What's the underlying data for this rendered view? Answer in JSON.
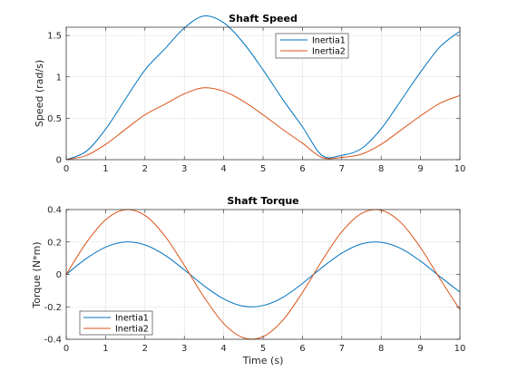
{
  "chart_data": [
    {
      "type": "line",
      "title": "Shaft Speed",
      "xlabel": "",
      "ylabel": "Speed (rad/s)",
      "xlim": [
        0,
        10
      ],
      "ylim": [
        0,
        1.6
      ],
      "xticks": [
        "0",
        "1",
        "2",
        "3",
        "4",
        "5",
        "6",
        "7",
        "8",
        "9",
        "10"
      ],
      "yticks": [
        "0",
        "0.5",
        "1",
        "1.5"
      ],
      "ytick_values": [
        0,
        0.5,
        1,
        1.5
      ],
      "grid": true,
      "legend": "top-right",
      "x": [
        0,
        0.5,
        1,
        1.5,
        2,
        2.5,
        3,
        3.5,
        4,
        4.5,
        5,
        5.5,
        6,
        6.5,
        7,
        7.5,
        8,
        8.5,
        9,
        9.5,
        10
      ],
      "series": [
        {
          "name": "Inertia1",
          "color": "#0072bd",
          "values": [
            0,
            0.098,
            0.368,
            0.729,
            1.083,
            1.336,
            1.59,
            1.736,
            1.654,
            1.411,
            1.084,
            0.728,
            0.397,
            0.05,
            0.053,
            0.134,
            0.373,
            0.714,
            1.058,
            1.365,
            1.551
          ]
        },
        {
          "name": "Inertia2",
          "color": "#d95319",
          "values": [
            0,
            0.049,
            0.184,
            0.365,
            0.542,
            0.668,
            0.795,
            0.868,
            0.827,
            0.705,
            0.542,
            0.364,
            0.199,
            0.025,
            0.027,
            0.067,
            0.186,
            0.357,
            0.529,
            0.683,
            0.775
          ]
        }
      ]
    },
    {
      "type": "line",
      "title": "Shaft Torque",
      "xlabel": "Time (s)",
      "ylabel": "Torque (N*m)",
      "xlim": [
        0,
        10
      ],
      "ylim": [
        -0.4,
        0.4
      ],
      "xticks": [
        "0",
        "1",
        "2",
        "3",
        "4",
        "5",
        "6",
        "7",
        "8",
        "9",
        "10"
      ],
      "yticks": [
        "-0.4",
        "-0.2",
        "0",
        "0.2",
        "0.4"
      ],
      "ytick_values": [
        -0.4,
        -0.2,
        0,
        0.2,
        0.4
      ],
      "grid": true,
      "legend": "bottom-left",
      "x": [
        0,
        0.5,
        1,
        1.5,
        2,
        2.5,
        3,
        3.5,
        4,
        4.5,
        5,
        5.5,
        6,
        6.5,
        7,
        7.5,
        8,
        8.5,
        9,
        9.5,
        10
      ],
      "series": [
        {
          "name": "Inertia1",
          "color": "#0072bd",
          "values": [
            0,
            0.096,
            0.168,
            0.2,
            0.182,
            0.12,
            0.028,
            -0.07,
            -0.151,
            -0.196,
            -0.192,
            -0.142,
            -0.056,
            0.043,
            0.131,
            0.188,
            0.198,
            0.16,
            0.082,
            -0.015,
            -0.109
          ]
        },
        {
          "name": "Inertia2",
          "color": "#d95319",
          "values": [
            0,
            0.192,
            0.337,
            0.399,
            0.364,
            0.239,
            0.056,
            -0.14,
            -0.303,
            -0.391,
            -0.384,
            -0.283,
            -0.112,
            0.086,
            0.263,
            0.376,
            0.396,
            0.32,
            0.165,
            -0.03,
            -0.218
          ]
        }
      ]
    }
  ]
}
